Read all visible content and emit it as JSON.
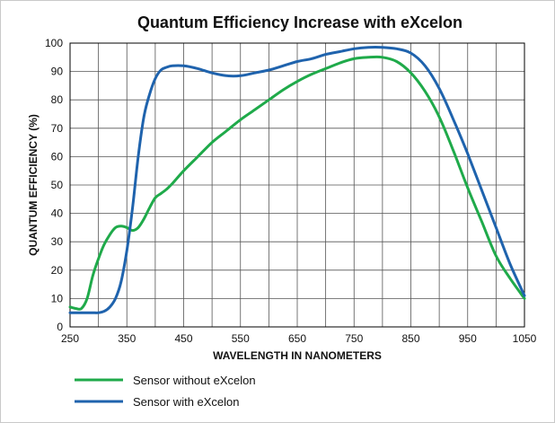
{
  "chart_data": {
    "type": "line",
    "title": "Quantum Efficiency Increase with eXcelon",
    "xlabel": "WAVELENGTH IN NANOMETERS",
    "ylabel": "QUANTUM EFFICIENCY (%)",
    "xlim": [
      250,
      1050
    ],
    "ylim": [
      0,
      100
    ],
    "x_ticks": [
      "250",
      "350",
      "450",
      "550",
      "650",
      "750",
      "850",
      "950",
      "1050"
    ],
    "y_ticks": [
      "0",
      "10",
      "20",
      "30",
      "40",
      "50",
      "60",
      "70",
      "80",
      "90",
      "100"
    ],
    "grid": true,
    "legend_position": "bottom-left",
    "series": [
      {
        "name": "Sensor without eXcelon",
        "color": "#1faa4a",
        "x": [
          250,
          260,
          270,
          280,
          290,
          300,
          310,
          320,
          330,
          340,
          350,
          360,
          370,
          380,
          390,
          400,
          410,
          420,
          430,
          450,
          475,
          500,
          525,
          550,
          575,
          600,
          625,
          650,
          675,
          700,
          725,
          750,
          775,
          800,
          825,
          850,
          875,
          900,
          925,
          950,
          975,
          1000,
          1025,
          1050
        ],
        "y": [
          7,
          6.5,
          6.5,
          10,
          18,
          24,
          29,
          32.5,
          35,
          35.5,
          35,
          34,
          35,
          38,
          42,
          45.5,
          47,
          48.5,
          50.5,
          55,
          60,
          65,
          69,
          73,
          76.5,
          80,
          83.5,
          86.5,
          89,
          91,
          93,
          94.5,
          95,
          95,
          93.5,
          89.5,
          83,
          74,
          62,
          49,
          37,
          25,
          17,
          10
        ]
      },
      {
        "name": "Sensor with eXcelon",
        "color": "#1f63ad",
        "x": [
          250,
          260,
          270,
          280,
          290,
          300,
          310,
          320,
          330,
          340,
          350,
          360,
          370,
          380,
          390,
          400,
          410,
          420,
          430,
          450,
          475,
          500,
          525,
          550,
          575,
          600,
          625,
          650,
          675,
          700,
          725,
          750,
          775,
          800,
          825,
          850,
          875,
          900,
          925,
          950,
          975,
          1000,
          1025,
          1050
        ],
        "y": [
          5,
          5,
          5,
          5,
          5,
          5,
          5.5,
          7,
          10,
          16,
          27,
          42,
          60,
          74,
          82,
          87.5,
          90.5,
          91.5,
          92,
          92,
          91,
          89.5,
          88.5,
          88.5,
          89.5,
          90.5,
          92,
          93.5,
          94.5,
          96,
          97,
          98,
          98.5,
          98.5,
          98,
          96.5,
          92,
          84,
          73,
          61,
          48,
          35,
          22,
          11
        ]
      }
    ]
  }
}
